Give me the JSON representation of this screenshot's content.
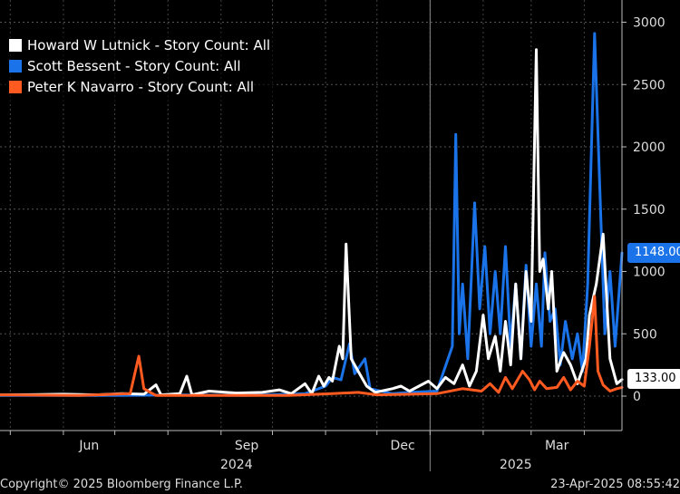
{
  "chart_data": {
    "type": "line",
    "title": "",
    "xlabel": "",
    "ylabel": "",
    "ylim": [
      -50,
      3100
    ],
    "yticks": [
      0,
      500,
      1000,
      1500,
      2000,
      2500,
      3000
    ],
    "x_tick_labels": [
      "Jun",
      "Sep",
      "Dec",
      "Mar"
    ],
    "x_year_labels": [
      "2024",
      "2025"
    ],
    "grid": true,
    "legend_position": "top-left",
    "x_range": [
      "2024-04-25",
      "2025-04-23"
    ],
    "series": [
      {
        "name": "Howard W Lutnick - Story Count: All",
        "color": "#ffffff",
        "last_label": "133.00",
        "points": [
          [
            "2024-04-25",
            10
          ],
          [
            "2024-05-15",
            12
          ],
          [
            "2024-06-01",
            15
          ],
          [
            "2024-06-20",
            10
          ],
          [
            "2024-07-05",
            20
          ],
          [
            "2024-07-18",
            15
          ],
          [
            "2024-07-25",
            90
          ],
          [
            "2024-07-28",
            10
          ],
          [
            "2024-08-08",
            20
          ],
          [
            "2024-08-12",
            160
          ],
          [
            "2024-08-15",
            10
          ],
          [
            "2024-08-25",
            40
          ],
          [
            "2024-09-10",
            25
          ],
          [
            "2024-09-25",
            30
          ],
          [
            "2024-10-05",
            50
          ],
          [
            "2024-10-12",
            20
          ],
          [
            "2024-10-20",
            100
          ],
          [
            "2024-10-24",
            20
          ],
          [
            "2024-10-28",
            160
          ],
          [
            "2024-10-31",
            80
          ],
          [
            "2024-11-03",
            150
          ],
          [
            "2024-11-05",
            120
          ],
          [
            "2024-11-09",
            400
          ],
          [
            "2024-11-11",
            300
          ],
          [
            "2024-11-13",
            1220
          ],
          [
            "2024-11-16",
            300
          ],
          [
            "2024-11-20",
            200
          ],
          [
            "2024-11-25",
            80
          ],
          [
            "2024-11-30",
            30
          ],
          [
            "2024-12-10",
            60
          ],
          [
            "2024-12-15",
            80
          ],
          [
            "2024-12-20",
            40
          ],
          [
            "2024-12-31",
            120
          ],
          [
            "2025-01-05",
            60
          ],
          [
            "2025-01-10",
            150
          ],
          [
            "2025-01-15",
            100
          ],
          [
            "2025-01-20",
            250
          ],
          [
            "2025-01-24",
            80
          ],
          [
            "2025-01-28",
            200
          ],
          [
            "2025-02-01",
            650
          ],
          [
            "2025-02-04",
            300
          ],
          [
            "2025-02-08",
            480
          ],
          [
            "2025-02-11",
            200
          ],
          [
            "2025-02-14",
            600
          ],
          [
            "2025-02-17",
            250
          ],
          [
            "2025-02-20",
            900
          ],
          [
            "2025-02-23",
            300
          ],
          [
            "2025-02-26",
            1000
          ],
          [
            "2025-03-01",
            600
          ],
          [
            "2025-03-04",
            2780
          ],
          [
            "2025-03-06",
            1000
          ],
          [
            "2025-03-08",
            1100
          ],
          [
            "2025-03-11",
            700
          ],
          [
            "2025-03-13",
            1000
          ],
          [
            "2025-03-16",
            200
          ],
          [
            "2025-03-20",
            350
          ],
          [
            "2025-03-24",
            250
          ],
          [
            "2025-03-28",
            100
          ],
          [
            "2025-04-02",
            300
          ],
          [
            "2025-04-04",
            650
          ],
          [
            "2025-04-08",
            900
          ],
          [
            "2025-04-12",
            1300
          ],
          [
            "2025-04-16",
            300
          ],
          [
            "2025-04-20",
            100
          ],
          [
            "2025-04-23",
            133
          ]
        ]
      },
      {
        "name": "Scott Bessent - Story Count: All",
        "color": "#1a73e8",
        "last_label": "1148.00",
        "points": [
          [
            "2024-04-25",
            5
          ],
          [
            "2024-06-10",
            5
          ],
          [
            "2024-07-05",
            5
          ],
          [
            "2024-08-10",
            10
          ],
          [
            "2024-09-15",
            5
          ],
          [
            "2024-10-20",
            20
          ],
          [
            "2024-11-01",
            80
          ],
          [
            "2024-11-05",
            150
          ],
          [
            "2024-11-10",
            130
          ],
          [
            "2024-11-15",
            420
          ],
          [
            "2024-11-18",
            180
          ],
          [
            "2024-11-24",
            300
          ],
          [
            "2024-11-27",
            60
          ],
          [
            "2024-12-10",
            20
          ],
          [
            "2024-12-20",
            30
          ],
          [
            "2025-01-05",
            40
          ],
          [
            "2025-01-14",
            400
          ],
          [
            "2025-01-16",
            2100
          ],
          [
            "2025-01-18",
            500
          ],
          [
            "2025-01-20",
            900
          ],
          [
            "2025-01-23",
            300
          ],
          [
            "2025-01-27",
            1550
          ],
          [
            "2025-01-30",
            700
          ],
          [
            "2025-02-02",
            1200
          ],
          [
            "2025-02-05",
            500
          ],
          [
            "2025-02-08",
            1000
          ],
          [
            "2025-02-11",
            500
          ],
          [
            "2025-02-14",
            1200
          ],
          [
            "2025-02-17",
            400
          ],
          [
            "2025-02-20",
            900
          ],
          [
            "2025-02-23",
            300
          ],
          [
            "2025-02-26",
            1050
          ],
          [
            "2025-03-01",
            400
          ],
          [
            "2025-03-04",
            900
          ],
          [
            "2025-03-07",
            400
          ],
          [
            "2025-03-09",
            1150
          ],
          [
            "2025-03-12",
            600
          ],
          [
            "2025-03-15",
            700
          ],
          [
            "2025-03-18",
            250
          ],
          [
            "2025-03-21",
            600
          ],
          [
            "2025-03-25",
            300
          ],
          [
            "2025-03-28",
            500
          ],
          [
            "2025-03-31",
            200
          ],
          [
            "2025-04-03",
            900
          ],
          [
            "2025-04-07",
            2910
          ],
          [
            "2025-04-10",
            1700
          ],
          [
            "2025-04-13",
            500
          ],
          [
            "2025-04-16",
            1000
          ],
          [
            "2025-04-19",
            400
          ],
          [
            "2025-04-23",
            1148
          ]
        ]
      },
      {
        "name": "Peter K Navarro - Story Count: All",
        "color": "#ff5a1f",
        "last_label": "",
        "points": [
          [
            "2024-04-25",
            10
          ],
          [
            "2024-06-10",
            5
          ],
          [
            "2024-07-10",
            20
          ],
          [
            "2024-07-15",
            320
          ],
          [
            "2024-07-18",
            60
          ],
          [
            "2024-07-25",
            5
          ],
          [
            "2024-09-01",
            5
          ],
          [
            "2024-10-10",
            5
          ],
          [
            "2024-11-05",
            20
          ],
          [
            "2024-11-20",
            30
          ],
          [
            "2024-12-01",
            10
          ],
          [
            "2025-01-05",
            20
          ],
          [
            "2025-01-20",
            60
          ],
          [
            "2025-01-31",
            40
          ],
          [
            "2025-02-05",
            100
          ],
          [
            "2025-02-10",
            30
          ],
          [
            "2025-02-14",
            150
          ],
          [
            "2025-02-18",
            60
          ],
          [
            "2025-02-24",
            200
          ],
          [
            "2025-02-28",
            130
          ],
          [
            "2025-03-03",
            50
          ],
          [
            "2025-03-06",
            120
          ],
          [
            "2025-03-10",
            60
          ],
          [
            "2025-03-16",
            70
          ],
          [
            "2025-03-20",
            150
          ],
          [
            "2025-03-24",
            50
          ],
          [
            "2025-03-28",
            120
          ],
          [
            "2025-04-01",
            80
          ],
          [
            "2025-04-04",
            400
          ],
          [
            "2025-04-07",
            800
          ],
          [
            "2025-04-09",
            200
          ],
          [
            "2025-04-12",
            90
          ],
          [
            "2025-04-16",
            40
          ],
          [
            "2025-04-20",
            60
          ],
          [
            "2025-04-23",
            70
          ]
        ]
      }
    ]
  },
  "footer": {
    "copyright": "Copyright© 2025 Bloomberg Finance L.P.",
    "timestamp": "23-Apr-2025 08:55:42"
  }
}
